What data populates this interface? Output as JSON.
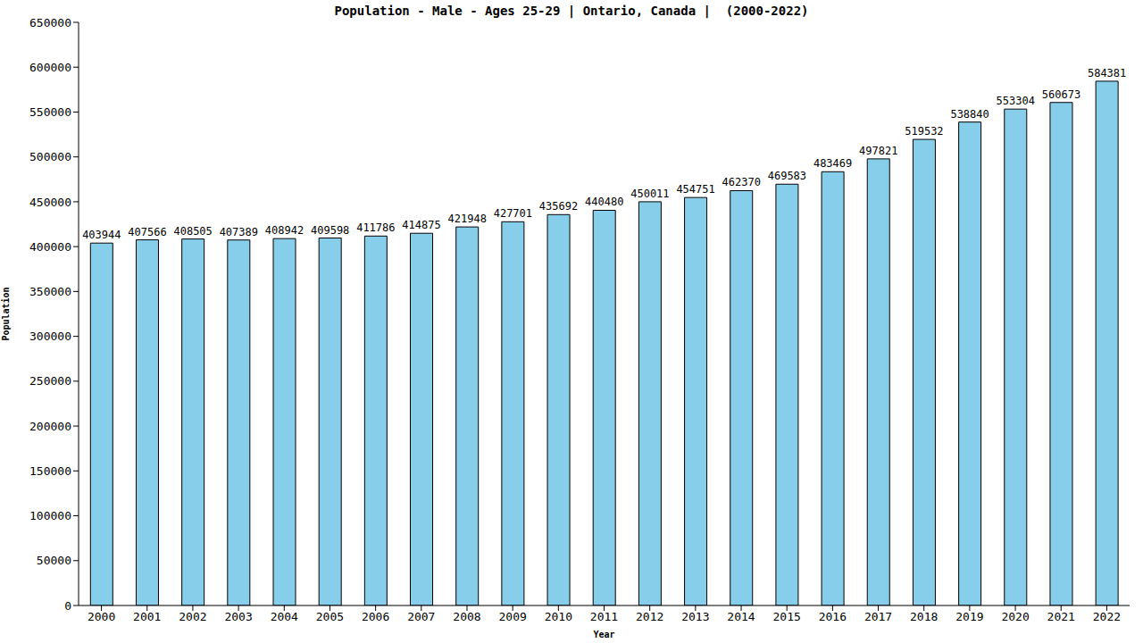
{
  "chart_data": {
    "type": "bar",
    "title": "Population - Male - Ages 25-29 | Ontario, Canada |  (2000-2022)",
    "x_label": "Year",
    "y_label": "Population",
    "categories": [
      "2000",
      "2001",
      "2002",
      "2003",
      "2004",
      "2005",
      "2006",
      "2007",
      "2008",
      "2009",
      "2010",
      "2011",
      "2012",
      "2013",
      "2014",
      "2015",
      "2016",
      "2017",
      "2018",
      "2019",
      "2020",
      "2021",
      "2022"
    ],
    "values": [
      403944,
      407566,
      408505,
      407389,
      408942,
      409598,
      411786,
      414875,
      421948,
      427701,
      435692,
      440480,
      450011,
      454751,
      462370,
      469583,
      483469,
      497821,
      519532,
      538840,
      553304,
      560673,
      584381
    ],
    "color": "#87ceeb",
    "ylim": [
      0,
      650000
    ],
    "yticks": [
      0,
      50000,
      100000,
      150000,
      200000,
      250000,
      300000,
      350000,
      400000,
      450000,
      500000,
      550000,
      600000,
      650000
    ],
    "grid": false,
    "data_labels": true
  }
}
